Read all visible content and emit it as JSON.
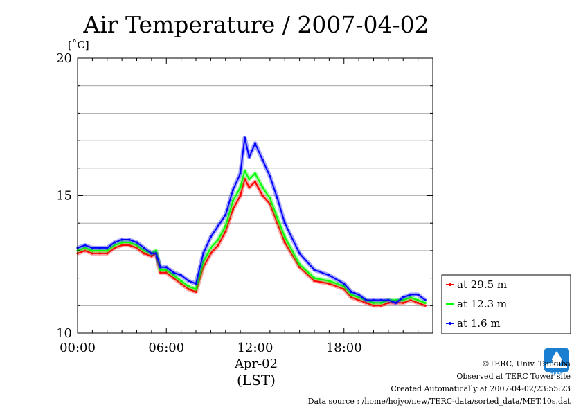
{
  "chart_data": {
    "type": "line",
    "title": "Air Temperature / 2007-04-02",
    "ylabel": "[˚C]",
    "ylim": [
      10,
      20
    ],
    "yticks": [
      "10",
      "15",
      "20"
    ],
    "xlim": [
      0,
      24
    ],
    "xticks": [
      {
        "value": 0,
        "label": "00:00"
      },
      {
        "value": 6,
        "label": "06:00"
      },
      {
        "value": 12,
        "label": "12:00"
      },
      {
        "value": 18,
        "label": "18:00"
      }
    ],
    "x_date_label": "Apr-02",
    "x_zone_label": "(LST)",
    "grid": true,
    "legend_position": "right-bottom-outside",
    "series": [
      {
        "name": "at 29.5 m",
        "color": "#ff0000",
        "x": [
          0.0,
          0.5,
          1.0,
          1.5,
          2.0,
          2.5,
          3.0,
          3.5,
          4.0,
          4.5,
          5.0,
          5.3,
          5.6,
          6.0,
          6.5,
          7.0,
          7.5,
          8.0,
          8.5,
          9.0,
          9.5,
          10.0,
          10.5,
          11.0,
          11.3,
          11.6,
          12.0,
          12.5,
          13.0,
          13.5,
          14.0,
          15.0,
          16.0,
          17.0,
          18.0,
          18.5,
          19.0,
          19.5,
          20.0,
          20.5,
          21.0,
          21.5,
          22.0,
          22.5,
          23.0,
          23.5
        ],
        "y": [
          12.9,
          13.0,
          12.9,
          12.9,
          12.9,
          13.1,
          13.2,
          13.2,
          13.1,
          12.9,
          12.8,
          12.9,
          12.2,
          12.2,
          12.0,
          11.8,
          11.6,
          11.5,
          12.4,
          12.9,
          13.2,
          13.7,
          14.5,
          15.0,
          15.6,
          15.3,
          15.5,
          15.0,
          14.7,
          14.0,
          13.3,
          12.4,
          11.9,
          11.8,
          11.6,
          11.3,
          11.2,
          11.1,
          11.0,
          11.0,
          11.1,
          11.1,
          11.1,
          11.2,
          11.1,
          11.0
        ]
      },
      {
        "name": "at 12.3 m",
        "color": "#00ff00",
        "x": [
          0.0,
          0.5,
          1.0,
          1.5,
          2.0,
          2.5,
          3.0,
          3.5,
          4.0,
          4.5,
          5.0,
          5.3,
          5.6,
          6.0,
          6.5,
          7.0,
          7.5,
          8.0,
          8.5,
          9.0,
          9.5,
          10.0,
          10.5,
          11.0,
          11.3,
          11.6,
          12.0,
          12.5,
          13.0,
          13.5,
          14.0,
          15.0,
          16.0,
          17.0,
          18.0,
          18.5,
          19.0,
          19.5,
          20.0,
          20.5,
          21.0,
          21.5,
          22.0,
          22.5,
          23.0,
          23.5
        ],
        "y": [
          13.0,
          13.1,
          13.0,
          13.0,
          13.0,
          13.2,
          13.3,
          13.3,
          13.2,
          13.0,
          12.9,
          13.0,
          12.3,
          12.3,
          12.1,
          11.9,
          11.7,
          11.6,
          12.6,
          13.1,
          13.4,
          13.9,
          14.8,
          15.3,
          15.9,
          15.6,
          15.8,
          15.3,
          14.9,
          14.2,
          13.5,
          12.5,
          12.0,
          11.9,
          11.7,
          11.4,
          11.3,
          11.2,
          11.1,
          11.1,
          11.2,
          11.2,
          11.2,
          11.3,
          11.2,
          11.1
        ]
      },
      {
        "name": "at 1.6 m",
        "color": "#0000ff",
        "x": [
          0.0,
          0.5,
          1.0,
          1.5,
          2.0,
          2.5,
          3.0,
          3.5,
          4.0,
          4.5,
          5.0,
          5.3,
          5.6,
          6.0,
          6.5,
          7.0,
          7.5,
          8.0,
          8.5,
          9.0,
          9.5,
          10.0,
          10.5,
          11.0,
          11.3,
          11.6,
          12.0,
          12.5,
          13.0,
          13.5,
          14.0,
          15.0,
          16.0,
          17.0,
          18.0,
          18.5,
          19.0,
          19.5,
          20.0,
          20.5,
          21.0,
          21.5,
          22.0,
          22.5,
          23.0,
          23.5
        ],
        "y": [
          13.1,
          13.2,
          13.1,
          13.1,
          13.1,
          13.3,
          13.4,
          13.4,
          13.3,
          13.1,
          12.9,
          12.9,
          12.4,
          12.4,
          12.2,
          12.1,
          11.9,
          11.8,
          12.9,
          13.5,
          13.9,
          14.3,
          15.2,
          15.8,
          17.1,
          16.4,
          16.9,
          16.3,
          15.7,
          14.9,
          14.0,
          12.9,
          12.3,
          12.1,
          11.8,
          11.5,
          11.4,
          11.2,
          11.2,
          11.2,
          11.2,
          11.1,
          11.3,
          11.4,
          11.4,
          11.2
        ]
      }
    ]
  },
  "credits": {
    "copyright": "©TERC, Univ. Tsukuba",
    "site": "Observed at TERC Tower site",
    "created": "Created Automatically at 2007-04-02/23:55:23",
    "source": "Data source : /home/hojyo/new/TERC-data/sorted_data/MET.10s.dat",
    "logo_text": "TERC"
  }
}
